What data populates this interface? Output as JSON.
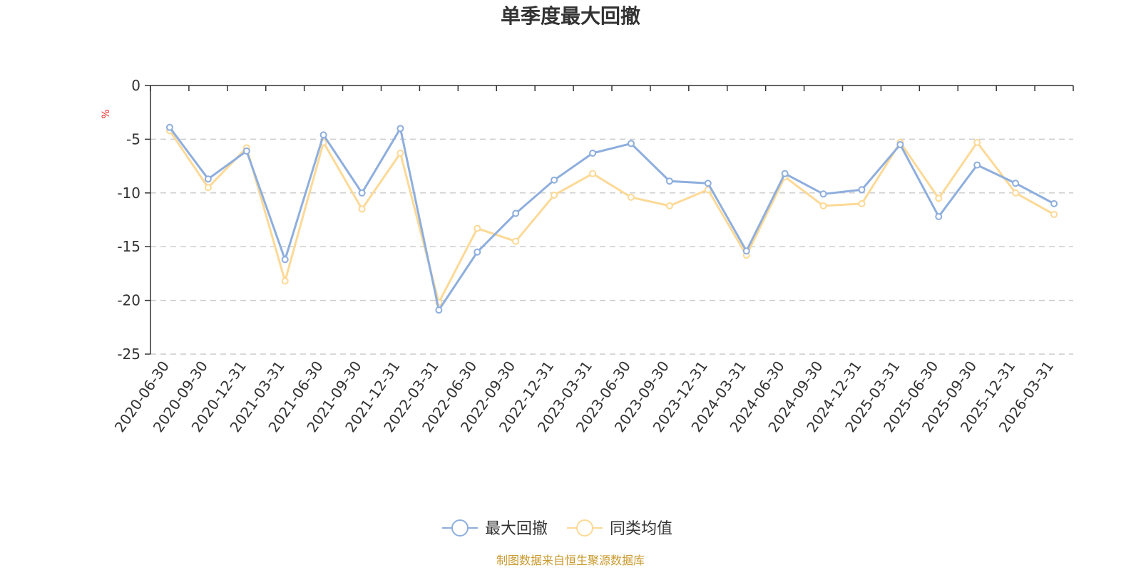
{
  "chart_data": {
    "type": "line",
    "title": "单季度最大回撤",
    "ylabel": "%",
    "xlabel": "",
    "ylim": [
      -25,
      0
    ],
    "yticks": [
      0,
      -5,
      -10,
      -15,
      -20,
      -25
    ],
    "grid": true,
    "legend_position": "bottom-center",
    "categories": [
      "2020-06-30",
      "2020-09-30",
      "2020-12-31",
      "2021-03-31",
      "2021-06-30",
      "2021-09-30",
      "2021-12-31",
      "2022-03-31",
      "2022-06-30",
      "2022-09-30",
      "2022-12-31",
      "2023-03-31",
      "2023-06-30",
      "2023-09-30",
      "2023-12-31",
      "2024-03-31",
      "2024-06-30",
      "2024-09-30",
      "2024-12-31",
      "2025-03-31",
      "2025-06-30",
      "2025-09-30",
      "2025-12-31",
      "2026-03-31"
    ],
    "series": [
      {
        "name": "最大回撤",
        "color": "#8eaedd",
        "values": [
          -3.9,
          -8.7,
          -6.1,
          -16.2,
          -4.6,
          -10.0,
          -4.0,
          -20.9,
          -15.5,
          -11.9,
          -8.8,
          -6.3,
          -5.4,
          -8.9,
          -9.1,
          -15.4,
          -8.2,
          -10.1,
          -9.7,
          -5.5,
          -12.2,
          -7.4,
          -9.1,
          -11.0
        ]
      },
      {
        "name": "同类均值",
        "color": "#fcd996",
        "values": [
          -4.2,
          -9.5,
          -5.8,
          -18.2,
          -5.3,
          -11.5,
          -6.3,
          -20.2,
          -13.3,
          -14.5,
          -10.2,
          -8.2,
          -10.4,
          -11.2,
          -9.7,
          -15.8,
          -8.5,
          -11.2,
          -11.0,
          -5.3,
          -10.5,
          -5.3,
          -10.0,
          -12.0
        ]
      }
    ]
  },
  "source_note": "制图数据来自恒生聚源数据库"
}
